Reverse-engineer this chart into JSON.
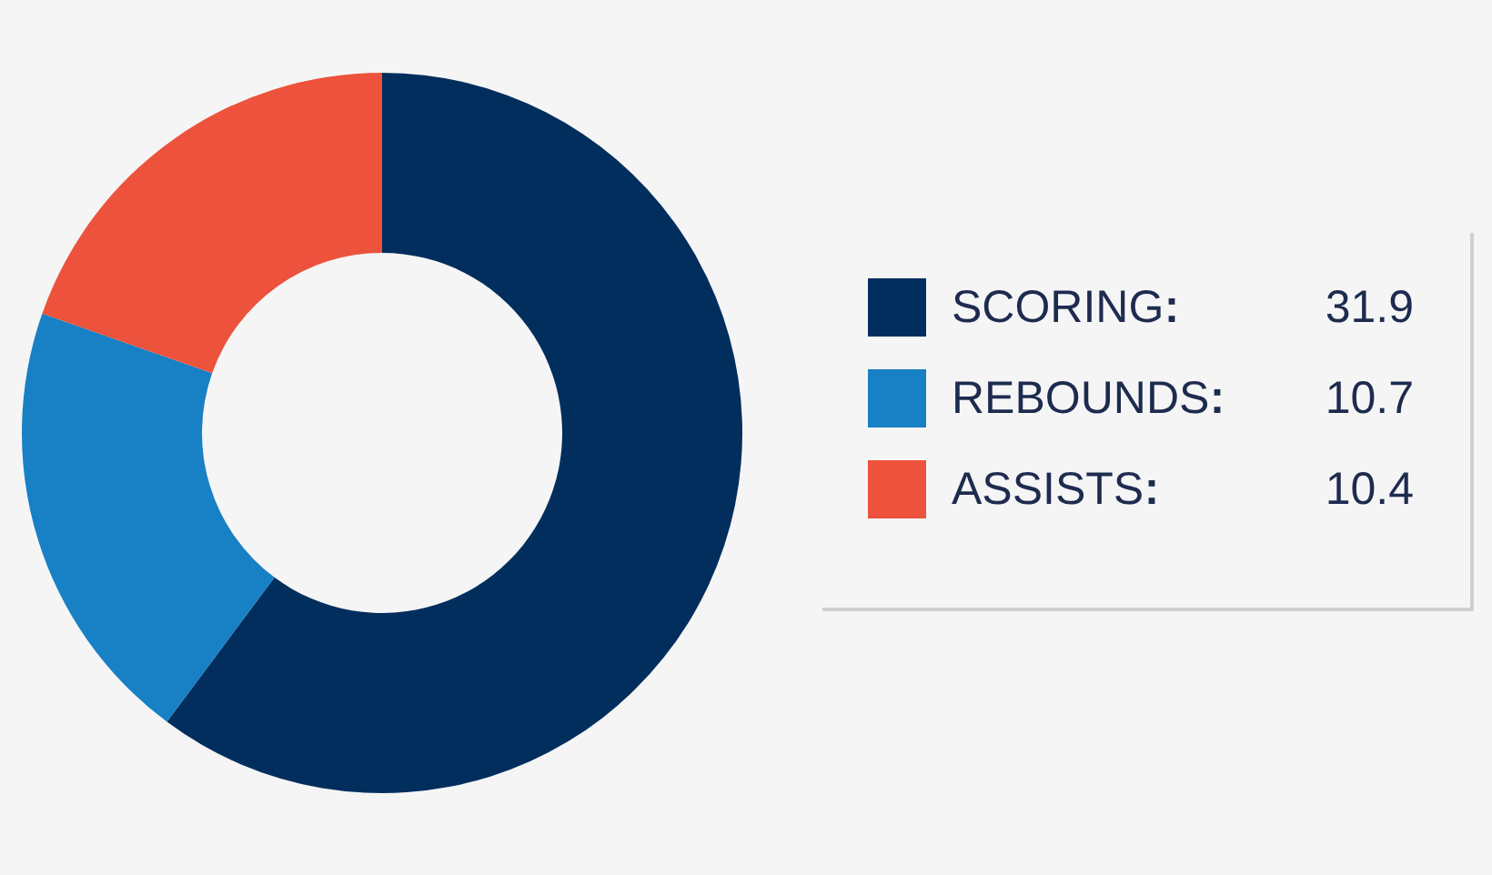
{
  "chart_data": {
    "type": "donut",
    "categories": [
      "SCORING",
      "REBOUNDS",
      "ASSISTS"
    ],
    "values": [
      31.9,
      10.7,
      10.4
    ],
    "colors": [
      "#022e5e",
      "#1880c4",
      "#ec523c"
    ],
    "data_labels": true,
    "legend": "right"
  }
}
